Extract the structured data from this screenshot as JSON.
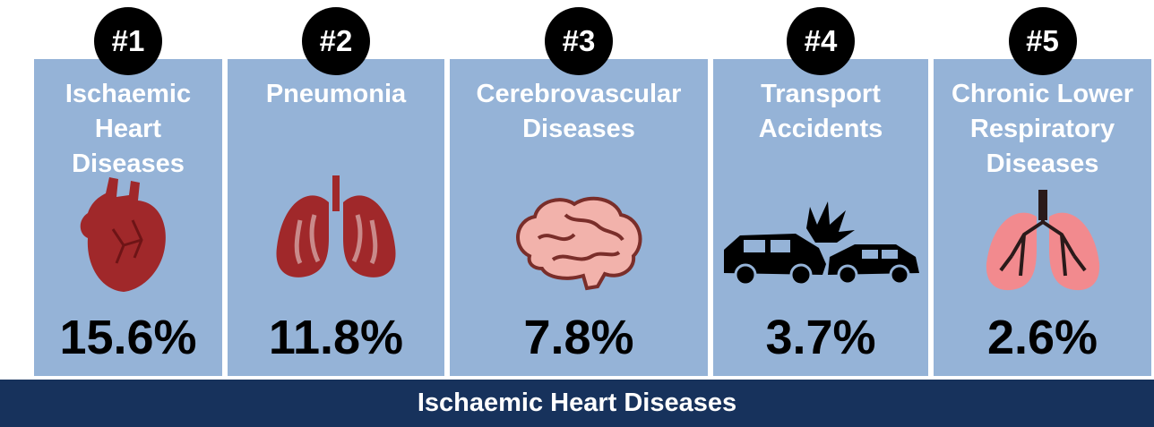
{
  "cards": [
    {
      "rank": "#1",
      "title": "Ischaemic Heart Diseases",
      "value": "15.6%"
    },
    {
      "rank": "#2",
      "title": "Pneumonia",
      "value": "11.8%"
    },
    {
      "rank": "#3",
      "title": "Cerebrovascular Diseases",
      "value": "7.8%"
    },
    {
      "rank": "#4",
      "title": "Transport Accidents",
      "value": "3.7%"
    },
    {
      "rank": "#5",
      "title": "Chronic Lower Respiratory Diseases",
      "value": "2.6%"
    }
  ],
  "footer": "Ischaemic Heart Diseases"
}
